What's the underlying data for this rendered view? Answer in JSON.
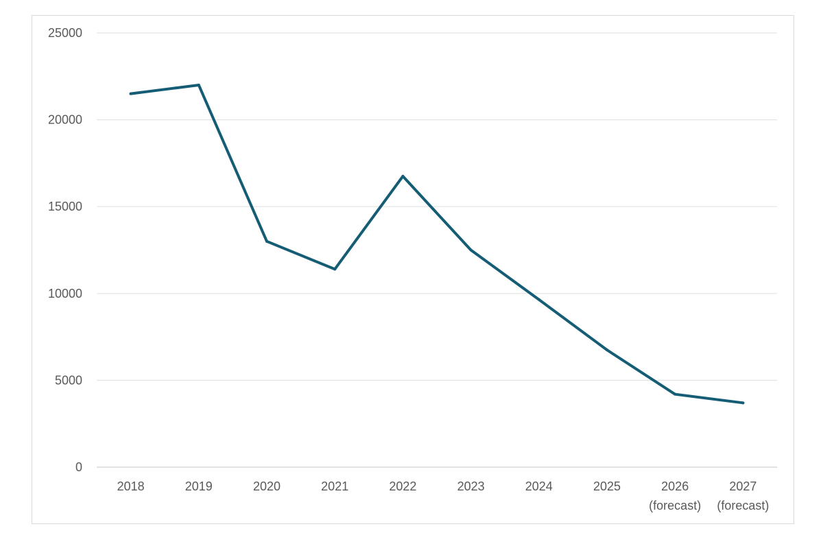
{
  "chart_data": {
    "type": "line",
    "title": "",
    "xlabel": "",
    "ylabel": "",
    "categories": [
      [
        "2018"
      ],
      [
        "2019"
      ],
      [
        "2020"
      ],
      [
        "2021"
      ],
      [
        "2022"
      ],
      [
        "2023"
      ],
      [
        "2024"
      ],
      [
        "2025"
      ],
      [
        "2026",
        "(forecast)"
      ],
      [
        "2027",
        "(forecast)"
      ]
    ],
    "series": [
      {
        "values": [
          21500,
          22000,
          13000,
          11400,
          16750,
          12500,
          9650,
          6750,
          4200,
          3700
        ],
        "color": "#155d75"
      }
    ],
    "ylim": [
      0,
      25000
    ],
    "yticks": [
      0,
      5000,
      10000,
      15000,
      20000,
      25000
    ],
    "grid": true,
    "legend": "none"
  }
}
